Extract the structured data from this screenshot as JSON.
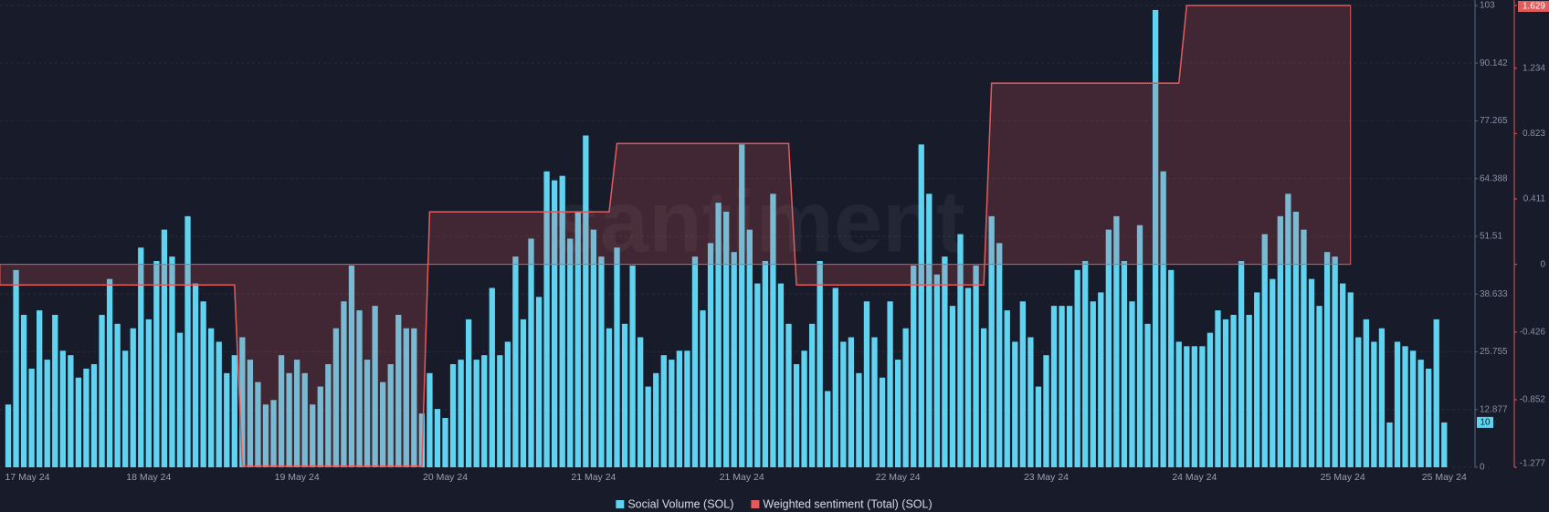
{
  "chart_data": {
    "type": "bar",
    "watermark": "santiment",
    "categories": [
      null,
      null,
      "17 May 24",
      null,
      null,
      null,
      null,
      null,
      null,
      null,
      null,
      null,
      null,
      null,
      null,
      null,
      null,
      null,
      "18 May 24",
      null,
      null,
      null,
      null,
      null,
      null,
      null,
      null,
      null,
      null,
      null,
      null,
      null,
      null,
      null,
      null,
      null,
      null,
      "19 May 24",
      null,
      null,
      null,
      null,
      null,
      null,
      null,
      null,
      null,
      null,
      null,
      null,
      null,
      null,
      null,
      null,
      null,
      null,
      "20 May 24",
      null,
      null,
      null,
      null,
      null,
      null,
      null,
      null,
      null,
      null,
      null,
      null,
      null,
      null,
      null,
      null,
      null,
      null,
      "21 May 24",
      null,
      null,
      null,
      null,
      null,
      null,
      null,
      null,
      null,
      null,
      null,
      null,
      null,
      null,
      null,
      null,
      null,
      null,
      "21 May 24",
      null,
      null,
      null,
      null,
      null,
      null,
      null,
      null,
      null,
      null,
      null,
      null,
      null,
      null,
      null,
      null,
      null,
      null,
      null,
      "22 May 24",
      null,
      null,
      null,
      null,
      null,
      null,
      null,
      null,
      null,
      null,
      null,
      null,
      null,
      null,
      null,
      null,
      null,
      null,
      "23 May 24",
      null,
      null,
      null,
      null,
      null,
      null,
      null,
      null,
      null,
      null,
      null,
      null,
      null,
      null,
      null,
      null,
      null,
      null,
      "24 May 24",
      null,
      null,
      null,
      null,
      null,
      null,
      null,
      null,
      null,
      null,
      null,
      null,
      null,
      null,
      null,
      null,
      null,
      null,
      "25 May 24",
      null,
      null,
      null,
      null,
      null,
      null,
      null,
      null,
      null,
      null,
      null,
      null,
      "25 May 24"
    ],
    "series": [
      {
        "name": "Social Volume (SOL)",
        "color": "#5fd3f0",
        "type": "bar",
        "values": [
          14,
          44,
          34,
          22,
          35,
          24,
          34,
          26,
          25,
          20,
          22,
          23,
          34,
          42,
          32,
          26,
          31,
          49,
          33,
          46,
          53,
          47,
          30,
          56,
          41,
          37,
          31,
          28,
          21,
          25,
          29,
          24,
          19,
          14,
          15,
          25,
          21,
          24,
          21,
          14,
          18,
          23,
          31,
          37,
          45,
          35,
          24,
          36,
          19,
          23,
          34,
          31,
          31,
          12,
          21,
          13,
          11,
          23,
          24,
          33,
          24,
          25,
          40,
          25,
          28,
          47,
          33,
          51,
          38,
          66,
          64,
          65,
          51,
          57,
          74,
          53,
          47,
          31,
          49,
          32,
          45,
          29,
          18,
          21,
          25,
          24,
          26,
          26,
          47,
          35,
          50,
          59,
          57,
          48,
          72,
          53,
          41,
          46,
          61,
          41,
          32,
          23,
          26,
          32,
          46,
          17,
          40,
          28,
          29,
          21,
          37,
          29,
          20,
          37,
          24,
          31,
          45,
          72,
          61,
          43,
          47,
          36,
          52,
          40,
          45,
          31,
          56,
          50,
          35,
          28,
          37,
          29,
          18,
          25,
          36,
          36,
          36,
          44,
          46,
          37,
          39,
          53,
          56,
          46,
          37,
          54,
          32,
          102,
          66,
          44,
          28,
          27,
          27,
          27,
          30,
          35,
          33,
          34,
          46,
          34,
          39,
          52,
          42,
          56,
          61,
          57,
          53,
          42,
          36,
          48,
          47,
          41,
          39,
          29,
          33,
          28,
          31,
          10,
          28,
          27,
          26,
          24,
          22,
          33,
          10
        ]
      },
      {
        "name": "Weighted sentiment (Total) (SOL)",
        "color": "#e05b5b",
        "type": "line",
        "axis": "y2",
        "values": [
          -0.13,
          -0.13,
          -0.13,
          -0.13,
          -0.13,
          -0.13,
          -0.13,
          -0.13,
          -0.13,
          -0.13,
          -0.13,
          -0.13,
          -0.13,
          -0.13,
          -0.13,
          -0.13,
          -0.13,
          -0.13,
          -0.13,
          -0.13,
          -0.13,
          -0.13,
          -0.13,
          -0.13,
          -0.13,
          -0.13,
          -0.13,
          -0.13,
          -0.13,
          -0.13,
          -1.27,
          -1.27,
          -1.27,
          -1.27,
          -1.27,
          -1.27,
          -1.27,
          -1.27,
          -1.27,
          -1.27,
          -1.27,
          -1.27,
          -1.27,
          -1.27,
          -1.27,
          -1.27,
          -1.27,
          -1.27,
          -1.27,
          -1.27,
          -1.27,
          -1.27,
          -1.27,
          -1.27,
          0.33,
          0.33,
          0.33,
          0.33,
          0.33,
          0.33,
          0.33,
          0.33,
          0.33,
          0.33,
          0.33,
          0.33,
          0.33,
          0.33,
          0.33,
          0.33,
          0.33,
          0.33,
          0.33,
          0.33,
          0.33,
          0.33,
          0.33,
          0.33,
          0.76,
          0.76,
          0.76,
          0.76,
          0.76,
          0.76,
          0.76,
          0.76,
          0.76,
          0.76,
          0.76,
          0.76,
          0.76,
          0.76,
          0.76,
          0.76,
          0.76,
          0.76,
          0.76,
          0.76,
          0.76,
          0.76,
          0.76,
          -0.13,
          -0.13,
          -0.13,
          -0.13,
          -0.13,
          -0.13,
          -0.13,
          -0.13,
          -0.13,
          -0.13,
          -0.13,
          -0.13,
          -0.13,
          -0.13,
          -0.13,
          -0.13,
          -0.13,
          -0.13,
          -0.13,
          -0.13,
          -0.13,
          -0.13,
          -0.13,
          -0.13,
          -0.13,
          1.14,
          1.14,
          1.14,
          1.14,
          1.14,
          1.14,
          1.14,
          1.14,
          1.14,
          1.14,
          1.14,
          1.14,
          1.14,
          1.14,
          1.14,
          1.14,
          1.14,
          1.14,
          1.14,
          1.14,
          1.14,
          1.14,
          1.14,
          1.14,
          1.14,
          1.629,
          1.629,
          1.629,
          1.629,
          1.629,
          1.629,
          1.629,
          1.629,
          1.629,
          1.629,
          1.629,
          1.629,
          1.629,
          1.629,
          1.629,
          1.629,
          1.629,
          1.629,
          1.629,
          1.629,
          1.629,
          1.629,
          null,
          null,
          null,
          null,
          null,
          null,
          null,
          null,
          null,
          null,
          null,
          null
        ]
      }
    ],
    "ylim": [
      0,
      103
    ],
    "yticks": [
      0,
      12.877,
      25.755,
      38.633,
      51.51,
      64.388,
      77.265,
      90.142,
      103
    ],
    "y2lim": [
      -1.277,
      1.629
    ],
    "y2ticks": [
      -1.277,
      -0.852,
      -0.426,
      0,
      0.411,
      0.823,
      1.234,
      1.629
    ],
    "grid": true,
    "legend_position": "bottom"
  }
}
